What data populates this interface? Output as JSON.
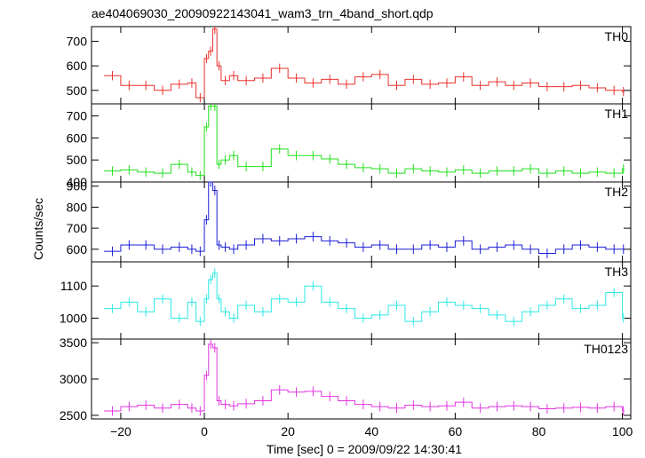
{
  "chart_data": {
    "type": "line",
    "title": "ae404069030_20090922143041_wam3_trn_4band_short.qdp",
    "xlabel": "Time [sec] 0 = 2009/09/22 14:30:41",
    "ylabel": "Counts/sec",
    "xlim": [
      -27,
      102
    ],
    "x_ticks": [
      -20,
      0,
      20,
      40,
      60,
      80,
      100
    ],
    "x_tick_labels": [
      "−20",
      "0",
      "20",
      "40",
      "60",
      "80",
      "100"
    ],
    "panels": [
      {
        "name": "TH0",
        "color": "#e8312e",
        "ylim": [
          445,
          760
        ],
        "y_ticks": [
          500,
          600,
          700
        ],
        "y_tick_labels": [
          "500",
          "600",
          "700"
        ],
        "x": [
          -24,
          -20,
          -16,
          -12,
          -8,
          -4,
          -2,
          0,
          1,
          2,
          3,
          4,
          6,
          8,
          12,
          16,
          20,
          24,
          28,
          32,
          36,
          40,
          44,
          48,
          52,
          56,
          60,
          64,
          68,
          72,
          76,
          80,
          84,
          88,
          92,
          96,
          100
        ],
        "y": [
          560,
          520,
          520,
          500,
          525,
          530,
          470,
          630,
          660,
          750,
          600,
          540,
          560,
          540,
          550,
          590,
          550,
          530,
          545,
          525,
          555,
          565,
          520,
          545,
          525,
          530,
          555,
          520,
          535,
          520,
          530,
          515,
          515,
          520,
          510,
          500,
          495
        ]
      },
      {
        "name": "TH1",
        "color": "#22e01c",
        "ylim": [
          400,
          755
        ],
        "y_ticks": [
          400,
          500,
          600,
          700
        ],
        "y_tick_labels": [
          "400",
          "500",
          "600",
          "700"
        ],
        "x": [
          -24,
          -20,
          -16,
          -12,
          -8,
          -4,
          -2,
          0,
          1,
          2,
          3,
          4,
          6,
          8,
          12,
          16,
          20,
          24,
          28,
          32,
          36,
          40,
          44,
          48,
          52,
          56,
          60,
          64,
          68,
          72,
          76,
          80,
          84,
          88,
          92,
          96,
          100
        ],
        "y": [
          450,
          455,
          445,
          440,
          480,
          445,
          430,
          650,
          745,
          745,
          480,
          500,
          520,
          470,
          470,
          550,
          520,
          520,
          505,
          480,
          465,
          460,
          440,
          460,
          450,
          445,
          455,
          440,
          450,
          450,
          460,
          440,
          450,
          440,
          445,
          440,
          460
        ]
      },
      {
        "name": "TH2",
        "color": "#1b1fd6",
        "ylim": [
          540,
          920
        ],
        "y_ticks": [
          600,
          700,
          800,
          900
        ],
        "y_tick_labels": [
          "600",
          "700",
          "800",
          "900"
        ],
        "x": [
          -24,
          -20,
          -16,
          -12,
          -8,
          -4,
          -2,
          0,
          1,
          2,
          3,
          4,
          6,
          8,
          12,
          16,
          20,
          24,
          28,
          32,
          36,
          40,
          44,
          48,
          52,
          56,
          60,
          64,
          68,
          72,
          76,
          80,
          84,
          88,
          92,
          96,
          100
        ],
        "y": [
          590,
          620,
          620,
          600,
          610,
          600,
          590,
          740,
          920,
          880,
          620,
          610,
          600,
          620,
          650,
          640,
          650,
          660,
          640,
          630,
          610,
          620,
          600,
          600,
          620,
          610,
          640,
          600,
          610,
          620,
          600,
          580,
          600,
          620,
          610,
          600,
          600
        ]
      },
      {
        "name": "TH3",
        "color": "#2de8e6",
        "ylim": [
          935,
          1175
        ],
        "y_ticks": [
          1000,
          1100
        ],
        "y_tick_labels": [
          "1000",
          "1100"
        ],
        "x": [
          -24,
          -20,
          -16,
          -12,
          -8,
          -4,
          -2,
          0,
          1,
          2,
          3,
          4,
          6,
          8,
          12,
          16,
          20,
          24,
          28,
          32,
          36,
          40,
          44,
          48,
          52,
          56,
          60,
          64,
          68,
          72,
          76,
          80,
          84,
          88,
          92,
          96,
          100
        ],
        "y": [
          1030,
          1050,
          1020,
          1060,
          1000,
          1050,
          990,
          1060,
          1120,
          1140,
          1060,
          1020,
          1000,
          1040,
          1020,
          1060,
          1050,
          1100,
          1050,
          1030,
          1000,
          1010,
          1040,
          990,
          1020,
          1050,
          1040,
          1030,
          1010,
          990,
          1020,
          1040,
          1060,
          1030,
          1040,
          1080,
          1000
        ]
      },
      {
        "name": "TH0123",
        "color": "#e136e1",
        "ylim": [
          2450,
          3550
        ],
        "y_ticks": [
          2500,
          3000,
          3500
        ],
        "y_tick_labels": [
          "2500",
          "3000",
          "3500"
        ],
        "x": [
          -24,
          -20,
          -16,
          -12,
          -8,
          -4,
          -2,
          0,
          1,
          2,
          3,
          4,
          6,
          8,
          12,
          16,
          20,
          24,
          28,
          32,
          36,
          40,
          44,
          48,
          52,
          56,
          60,
          64,
          68,
          72,
          76,
          80,
          84,
          88,
          92,
          96,
          100
        ],
        "y": [
          2560,
          2620,
          2640,
          2600,
          2650,
          2600,
          2560,
          3050,
          3480,
          3430,
          2700,
          2650,
          2630,
          2660,
          2700,
          2850,
          2820,
          2830,
          2760,
          2700,
          2650,
          2620,
          2600,
          2640,
          2620,
          2630,
          2680,
          2600,
          2620,
          2630,
          2620,
          2590,
          2600,
          2610,
          2600,
          2620,
          2560
        ]
      }
    ]
  }
}
